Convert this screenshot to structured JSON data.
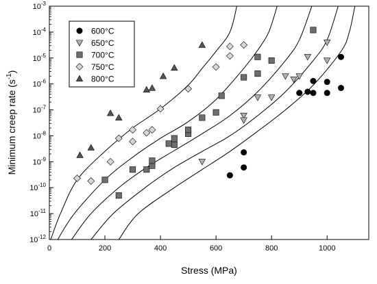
{
  "chart_data": {
    "type": "scatter",
    "xlabel": "Stress (MPa)",
    "ylabel_main": "Minimum creep rate (s",
    "ylabel_sup": "-1",
    "ylabel_close": ")",
    "xlim": [
      0,
      1150
    ],
    "ylim_exp": [
      -12,
      -3
    ],
    "y_scale": "log",
    "grid": false,
    "legend_position": "top-left",
    "x_ticks": [
      {
        "value": 0,
        "label": "0"
      },
      {
        "value": 200,
        "label": "200"
      },
      {
        "value": 400,
        "label": "400"
      },
      {
        "value": 600,
        "label": "600"
      },
      {
        "value": 800,
        "label": "800"
      },
      {
        "value": 1000,
        "label": "1000"
      }
    ],
    "y_ticks": [
      {
        "exp": -12,
        "base": "10",
        "sup": "-12"
      },
      {
        "exp": -11,
        "base": "10",
        "sup": "-11"
      },
      {
        "exp": -10,
        "base": "10",
        "sup": "-10"
      },
      {
        "exp": -9,
        "base": "10",
        "sup": "-9"
      },
      {
        "exp": -8,
        "base": "10",
        "sup": "-8"
      },
      {
        "exp": -7,
        "base": "10",
        "sup": "-7"
      },
      {
        "exp": -6,
        "base": "10",
        "sup": "-6"
      },
      {
        "exp": -5,
        "base": "10",
        "sup": "-5"
      },
      {
        "exp": -4,
        "base": "10",
        "sup": "-4"
      },
      {
        "exp": -3,
        "base": "10",
        "sup": "-3"
      }
    ],
    "series": [
      {
        "name": "600°C",
        "marker": "circle",
        "color": "#000000",
        "points": [
          [
            650,
            3e-10
          ],
          [
            700,
            6e-10
          ],
          [
            700,
            2.3e-09
          ],
          [
            900,
            4.5e-07
          ],
          [
            930,
            5e-07
          ],
          [
            950,
            4.5e-07
          ],
          [
            950,
            1.3e-06
          ],
          [
            1000,
            1.2e-06
          ],
          [
            1000,
            4.5e-07
          ],
          [
            1050,
            1.1e-05
          ],
          [
            1050,
            7e-07
          ]
        ]
      },
      {
        "name": "650°C",
        "marker": "triangle-down",
        "color": "#b0b0b0",
        "points": [
          [
            550,
            1e-09
          ],
          [
            700,
            6e-08
          ],
          [
            700,
            4e-08
          ],
          [
            750,
            3e-07
          ],
          [
            800,
            3e-07
          ],
          [
            850,
            2e-06
          ],
          [
            880,
            1.5e-06
          ],
          [
            900,
            2e-06
          ],
          [
            930,
            1.1e-05
          ],
          [
            1000,
            4e-05
          ],
          [
            1000,
            8e-06
          ]
        ]
      },
      {
        "name": "700°C",
        "marker": "square",
        "color": "#6e6e6e",
        "points": [
          [
            200,
            2e-10
          ],
          [
            250,
            5e-11
          ],
          [
            300,
            5e-10
          ],
          [
            350,
            5e-10
          ],
          [
            370,
            7e-10
          ],
          [
            370,
            1.1e-09
          ],
          [
            430,
            5e-09
          ],
          [
            450,
            8e-09
          ],
          [
            450,
            4.5e-09
          ],
          [
            500,
            1.2e-08
          ],
          [
            500,
            1.7e-08
          ],
          [
            550,
            5e-08
          ],
          [
            600,
            8e-08
          ],
          [
            620,
            3.5e-07
          ],
          [
            700,
            1.8e-06
          ],
          [
            750,
            2.5e-06
          ],
          [
            750,
            1.1e-05
          ],
          [
            800,
            8e-06
          ],
          [
            950,
            0.00012
          ]
        ]
      },
      {
        "name": "750°C",
        "marker": "diamond",
        "color": "#d6d6d6",
        "points": [
          [
            100,
            2.3e-10
          ],
          [
            150,
            1.8e-10
          ],
          [
            220,
            1e-09
          ],
          [
            250,
            8e-09
          ],
          [
            300,
            6e-09
          ],
          [
            300,
            1.7e-08
          ],
          [
            350,
            1.3e-08
          ],
          [
            370,
            1.7e-08
          ],
          [
            400,
            1.1e-07
          ],
          [
            500,
            6.5e-07
          ],
          [
            600,
            4.5e-06
          ],
          [
            650,
            1.2e-05
          ],
          [
            650,
            2.8e-05
          ],
          [
            700,
            3.2e-05
          ]
        ]
      },
      {
        "name": "800°C",
        "marker": "triangle-up",
        "color": "#555555",
        "points": [
          [
            110,
            1.8e-09
          ],
          [
            150,
            3.5e-09
          ],
          [
            220,
            7.5e-08
          ],
          [
            250,
            5e-08
          ],
          [
            350,
            6e-07
          ],
          [
            370,
            7e-07
          ],
          [
            410,
            2e-06
          ],
          [
            450,
            4.2e-06
          ],
          [
            550,
            3.2e-05
          ]
        ]
      }
    ],
    "model_curves": [
      {
        "points": [
          [
            5,
            1e-12
          ],
          [
            40,
            1e-11
          ],
          [
            100,
            2e-10
          ],
          [
            200,
            2.5e-09
          ],
          [
            300,
            2e-08
          ],
          [
            400,
            1.1e-07
          ],
          [
            500,
            9e-07
          ],
          [
            550,
            4e-06
          ],
          [
            600,
            1.8e-05
          ],
          [
            650,
            0.0001
          ],
          [
            675,
            0.001
          ]
        ]
      },
      {
        "points": [
          [
            30,
            1e-12
          ],
          [
            90,
            1e-11
          ],
          [
            200,
            2e-10
          ],
          [
            300,
            1.5e-09
          ],
          [
            400,
            8e-09
          ],
          [
            500,
            3.5e-08
          ],
          [
            600,
            2.5e-07
          ],
          [
            700,
            4e-06
          ],
          [
            750,
            2e-05
          ],
          [
            790,
            0.0001
          ],
          [
            820,
            0.001
          ]
        ]
      },
      {
        "points": [
          [
            80,
            1e-12
          ],
          [
            150,
            1e-11
          ],
          [
            250,
            1e-10
          ],
          [
            350,
            6e-10
          ],
          [
            450,
            2.7e-09
          ],
          [
            550,
            1.2e-08
          ],
          [
            650,
            6e-08
          ],
          [
            750,
            5e-07
          ],
          [
            850,
            8e-06
          ],
          [
            900,
            5e-05
          ],
          [
            945,
            0.001
          ]
        ]
      },
      {
        "points": [
          [
            150,
            1e-12
          ],
          [
            230,
            1e-11
          ],
          [
            350,
            1.1e-10
          ],
          [
            450,
            6e-10
          ],
          [
            550,
            2.5e-09
          ],
          [
            650,
            1e-08
          ],
          [
            750,
            6e-08
          ],
          [
            850,
            5e-07
          ],
          [
            950,
            8e-06
          ],
          [
            1000,
            5e-05
          ],
          [
            1040,
            0.001
          ]
        ]
      },
      {
        "points": [
          [
            250,
            1e-12
          ],
          [
            320,
            1e-11
          ],
          [
            450,
            1e-10
          ],
          [
            550,
            5e-10
          ],
          [
            650,
            2.5e-09
          ],
          [
            750,
            1.5e-08
          ],
          [
            850,
            1e-07
          ],
          [
            950,
            9e-07
          ],
          [
            1050,
            1.8e-05
          ],
          [
            1080,
            0.0001
          ],
          [
            1100,
            0.001
          ]
        ]
      }
    ]
  }
}
